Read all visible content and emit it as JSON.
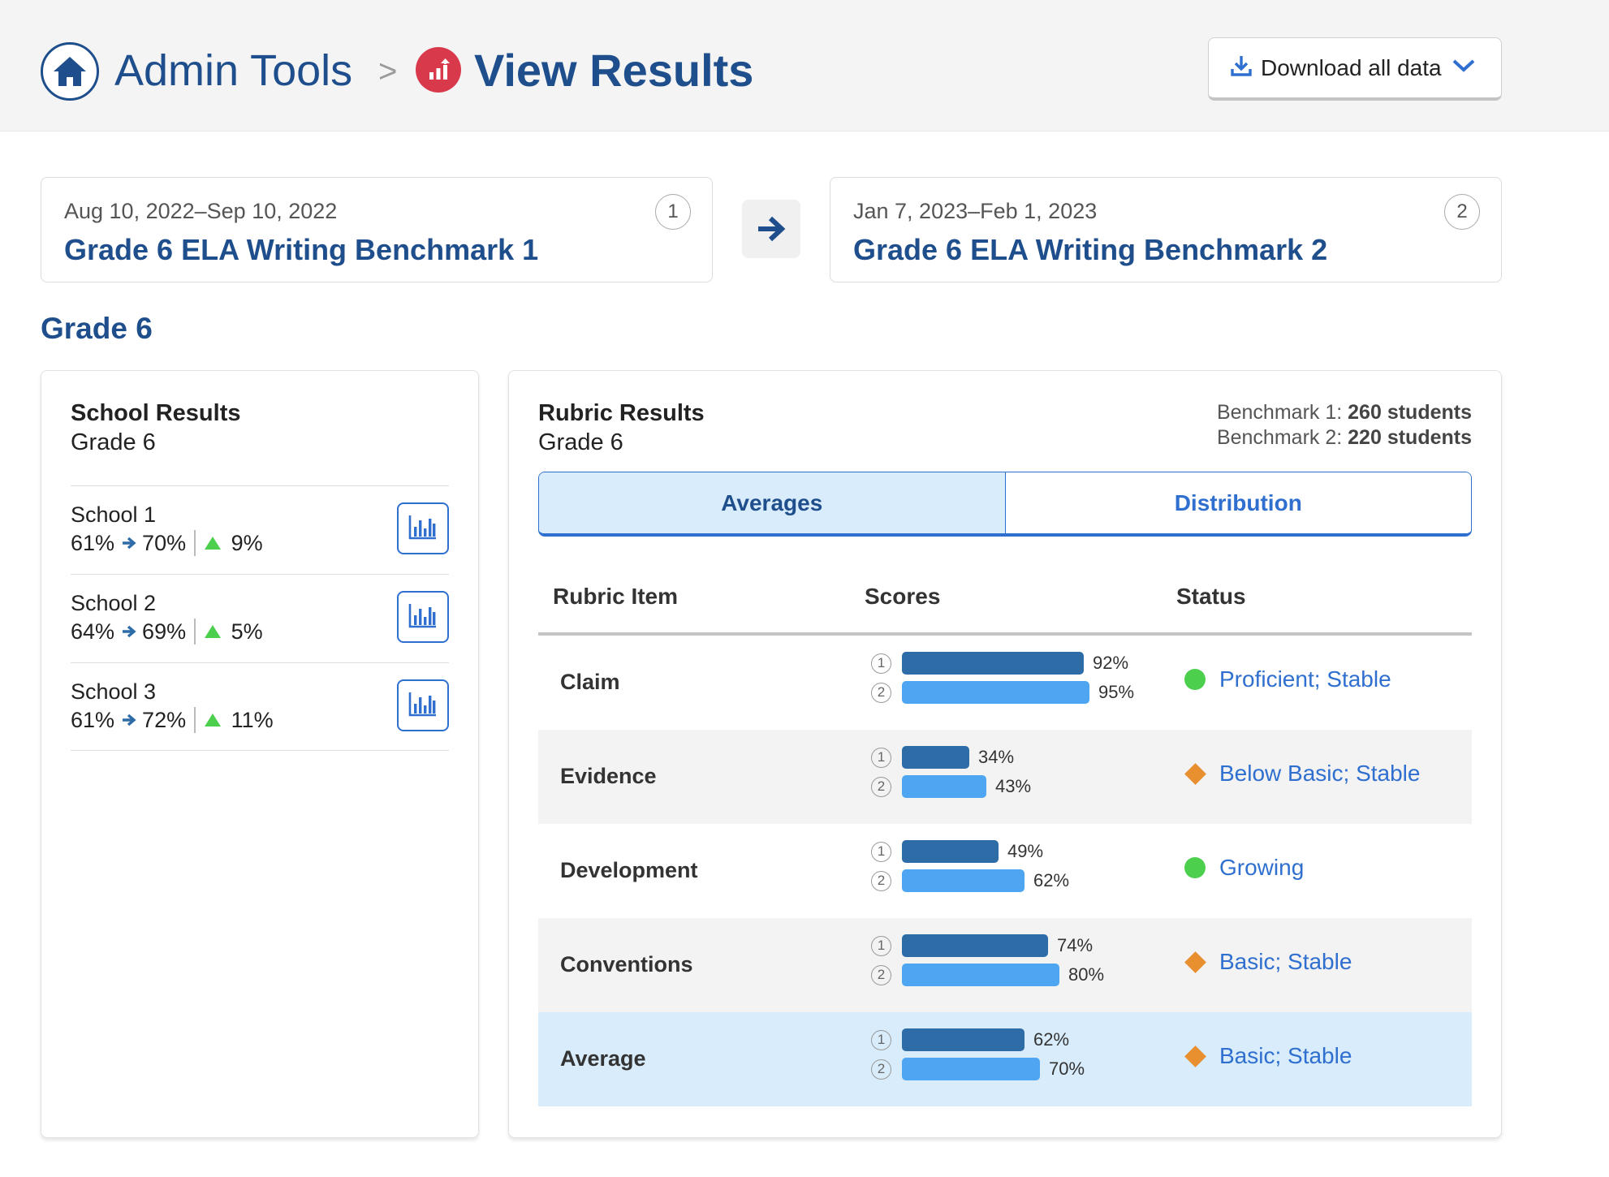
{
  "header": {
    "breadcrumb_root": "Admin Tools",
    "separator": ">",
    "page_title": "View Results",
    "download_label": "Download all data"
  },
  "benchmarks": [
    {
      "number": "1",
      "date_range": "Aug 10, 2022–Sep 10, 2022",
      "name": "Grade 6 ELA Writing Benchmark 1"
    },
    {
      "number": "2",
      "date_range": "Jan 7, 2023–Feb 1, 2023",
      "name": "Grade 6 ELA Writing Benchmark 2"
    }
  ],
  "section_title": "Grade 6",
  "school_results": {
    "title": "School Results",
    "subtitle": "Grade 6",
    "schools": [
      {
        "name": "School 1",
        "from": "61%",
        "to": "70%",
        "change": "9%"
      },
      {
        "name": "School 2",
        "from": "64%",
        "to": "69%",
        "change": "5%"
      },
      {
        "name": "School 3",
        "from": "61%",
        "to": "72%",
        "change": "11%"
      }
    ]
  },
  "rubric_results": {
    "title": "Rubric Results",
    "subtitle": "Grade 6",
    "counts": [
      {
        "label": "Benchmark 1:",
        "value": "260 students"
      },
      {
        "label": "Benchmark 2:",
        "value": "220 students"
      }
    ],
    "tabs": [
      "Averages",
      "Distribution"
    ],
    "active_tab": "Averages",
    "columns": [
      "Rubric Item",
      "Scores",
      "Status"
    ],
    "rows": [
      {
        "item": "Claim",
        "b1_label": "92%",
        "b1": 0.92,
        "b2_label": "95%",
        "b2": 0.95,
        "status": "Proficient; Stable",
        "status_icon": "green-circle-icon"
      },
      {
        "item": "Evidence",
        "b1_label": "34%",
        "b1": 0.34,
        "b2_label": "43%",
        "b2": 0.43,
        "status": "Below Basic; Stable",
        "status_icon": "orange-diamond-icon"
      },
      {
        "item": "Development",
        "b1_label": "49%",
        "b1": 0.49,
        "b2_label": "62%",
        "b2": 0.62,
        "status": "Growing",
        "status_icon": "green-circle-icon"
      },
      {
        "item": "Conventions",
        "b1_label": "74%",
        "b1": 0.74,
        "b2_label": "80%",
        "b2": 0.8,
        "status": "Basic; Stable",
        "status_icon": "orange-diamond-icon"
      },
      {
        "item": "Average",
        "b1_label": "62%",
        "b1": 0.62,
        "b2_label": "70%",
        "b2": 0.7,
        "status": "Basic; Stable",
        "status_icon": "orange-diamond-icon"
      }
    ]
  },
  "colors": {
    "brand_blue": "#1f4e8c",
    "link_blue": "#2f6fcf",
    "bar_benchmark_1": "#2e6ca8",
    "bar_benchmark_2": "#4ea6f2",
    "status_green": "#4ccf4c",
    "status_orange": "#e88f2f",
    "increase_green": "#4ccf4c",
    "results_icon_red": "#d83a4c"
  }
}
